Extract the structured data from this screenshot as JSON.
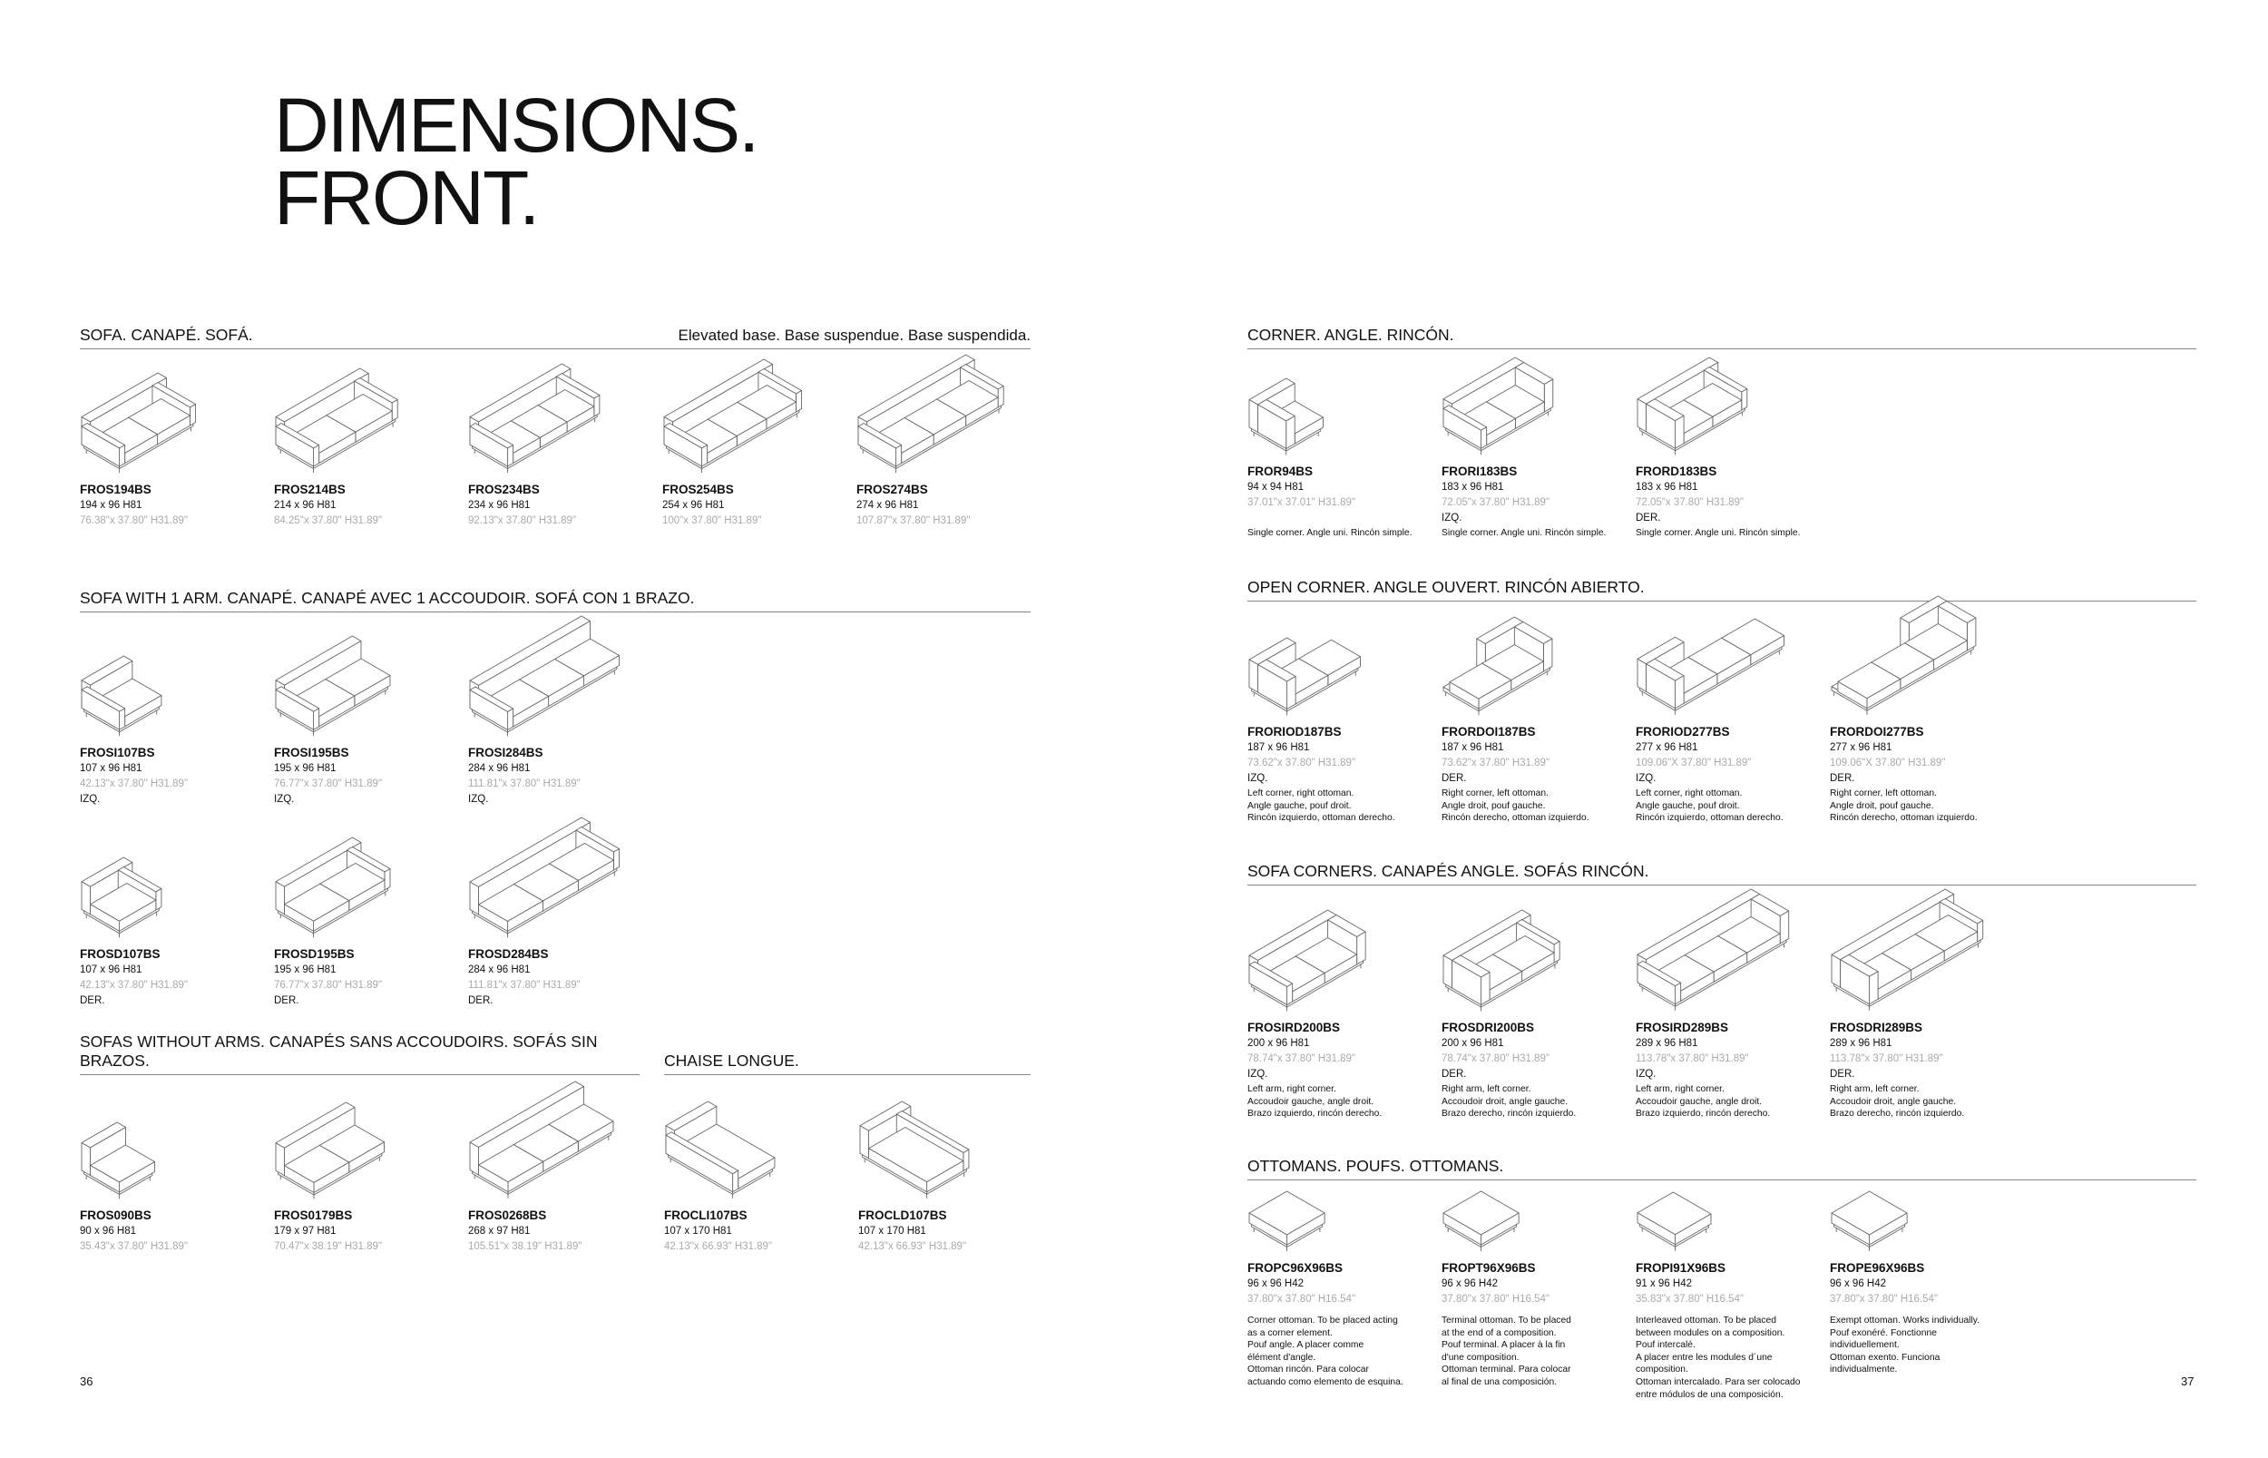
{
  "title": {
    "line1": "DIMENSIONS.",
    "line2": "FRONT."
  },
  "page_numbers": {
    "left": "36",
    "right": "37"
  },
  "sections": {
    "sofa": {
      "title": "SOFA. CANAPÉ. SOFÁ.",
      "note": "Elevated base. Base suspendue. Base suspendida.",
      "items": [
        {
          "code": "FROS194BS",
          "cm": "194 x 96  H81",
          "in": "76.38\"x 37.80\"  H31.89\"",
          "drawing": "sofa-2-arms"
        },
        {
          "code": "FROS214BS",
          "cm": "214 x 96  H81",
          "in": "84.25\"x 37.80\"  H31.89\"",
          "drawing": "sofa-2-arms"
        },
        {
          "code": "FROS234BS",
          "cm": "234 x 96  H81",
          "in": "92.13\"x 37.80\"  H31.89\"",
          "drawing": "sofa-2-arms"
        },
        {
          "code": "FROS254BS",
          "cm": "254 x 96  H81",
          "in": "100\"x 37.80\"  H31.89\"",
          "drawing": "sofa-2-arms"
        },
        {
          "code": "FROS274BS",
          "cm": "274 x 96  H81",
          "in": "107.87\"x 37.80\"  H31.89\"",
          "drawing": "sofa-2-arms"
        }
      ]
    },
    "one_arm": {
      "title": "SOFA WITH 1 ARM. CANAPÉ. CANAPÉ AVEC 1 ACCOUDOIR. SOFÁ CON 1 BRAZO.",
      "items": [
        {
          "code": "FROSI107BS",
          "cm": "107 x 96  H81",
          "in": "42.13\"x 37.80\"  H31.89\"",
          "side": "IZQ.",
          "drawing": "sofa-arm-left"
        },
        {
          "code": "FROSI195BS",
          "cm": "195 x 96  H81",
          "in": "76.77\"x 37.80\"  H31.89\"",
          "side": "IZQ.",
          "drawing": "sofa-arm-left"
        },
        {
          "code": "FROSI284BS",
          "cm": "284 x 96  H81",
          "in": "111.81\"x 37.80\"  H31.89\"",
          "side": "IZQ.",
          "drawing": "sofa-arm-left"
        },
        {
          "code": "FROSD107BS",
          "cm": "107 x 96  H81",
          "in": "42.13\"x 37.80\"  H31.89\"",
          "side": "DER.",
          "drawing": "sofa-arm-right"
        },
        {
          "code": "FROSD195BS",
          "cm": "195 x 96  H81",
          "in": "76.77\"x 37.80\"  H31.89\"",
          "side": "DER.",
          "drawing": "sofa-arm-right"
        },
        {
          "code": "FROSD284BS",
          "cm": "284 x 96  H81",
          "in": "111.81\"x 37.80\"  H31.89\"",
          "side": "DER.",
          "drawing": "sofa-arm-right"
        }
      ]
    },
    "no_arms": {
      "title": "SOFAS WITHOUT ARMS. CANAPÉS SANS ACCOUDOIRS. SOFÁS SIN BRAZOS.",
      "items": [
        {
          "code": "FROS090BS",
          "cm": "90 x 96  H81",
          "in": "35.43\"x 37.80\"  H31.89\"",
          "drawing": "sofa-no-arms"
        },
        {
          "code": "FROS0179BS",
          "cm": "179 x 97  H81",
          "in": "70.47\"x 38.19\"  H31.89\"",
          "drawing": "sofa-no-arms"
        },
        {
          "code": "FROS0268BS",
          "cm": "268 x 97  H81",
          "in": "105.51\"x 38.19\"  H31.89\"",
          "drawing": "sofa-no-arms"
        }
      ]
    },
    "chaise": {
      "title": "CHAISE LONGUE.",
      "items": [
        {
          "code": "FROCLI107BS",
          "cm": "107 x 170  H81",
          "in": "42.13\"x 66.93\"  H31.89\"",
          "drawing": "chaise-left"
        },
        {
          "code": "FROCLD107BS",
          "cm": "107 x 170  H81",
          "in": "42.13\"x 66.93\"  H31.89\"",
          "drawing": "chaise-right"
        }
      ]
    },
    "corner": {
      "title": "CORNER. ANGLE. RINCÓN.",
      "items": [
        {
          "code": "FROR94BS",
          "cm": "94 x 94  H81",
          "in": "37.01\"x 37.01\"  H31.89\"",
          "side": "",
          "desc": "Single corner. Angle uni. Rincón simple.",
          "drawing": "corner"
        },
        {
          "code": "FRORI183BS",
          "cm": "183 x 96  H81",
          "in": "72.05\"x 37.80\"  H31.89\"",
          "side": "IZQ.",
          "desc": "Single corner. Angle uni. Rincón simple.",
          "drawing": "corner-left"
        },
        {
          "code": "FRORD183BS",
          "cm": "183 x 96  H81",
          "in": "72.05\"x 37.80\"  H31.89\"",
          "side": "DER.",
          "desc": "Single corner. Angle uni. Rincón simple.",
          "drawing": "corner-right"
        }
      ]
    },
    "open_corner": {
      "title": "OPEN CORNER. ANGLE OUVERT. RINCÓN ABIERTO.",
      "items": [
        {
          "code": "FRORIOD187BS",
          "cm": "187 x 96  H81",
          "in": "73.62\"x 37.80\"  H31.89\"",
          "side": "IZQ.",
          "desc": "Left corner, right ottoman.\nAngle gauche, pouf droit.\nRincón izquierdo, ottoman derecho.",
          "drawing": "open-corner-left"
        },
        {
          "code": "FRORDOI187BS",
          "cm": "187 x 96  H81",
          "in": "73.62\"x 37.80\"  H31.89\"",
          "side": "DER.",
          "desc": "Right corner, left ottoman.\nAngle droit, pouf gauche.\nRincón derecho, ottoman izquierdo.",
          "drawing": "open-corner-right"
        },
        {
          "code": "FRORIOD277BS",
          "cm": "277 x 96  H81",
          "in": "109.06\"X 37.80\"  H31.89\"",
          "side": "IZQ.",
          "desc": "Left corner, right ottoman.\nAngle gauche, pouf droit.\nRincón izquierdo, ottoman derecho.",
          "drawing": "open-corner-left"
        },
        {
          "code": "FRORDOI277BS",
          "cm": "277 x 96  H81",
          "in": "109.06\"X 37.80\"  H31.89\"",
          "side": "DER.",
          "desc": "Right corner, left ottoman.\nAngle droit, pouf gauche.\nRincón derecho, ottoman izquierdo.",
          "drawing": "open-corner-right"
        }
      ]
    },
    "sofa_corners": {
      "title": "SOFA CORNERS. CANAPÉS ANGLE. SOFÁS RINCÓN.",
      "items": [
        {
          "code": "FROSIRD200BS",
          "cm": "200 x 96  H81",
          "in": "78.74\"x 37.80\"  H31.89\"",
          "side": "IZQ.",
          "desc": "Left arm, right corner.\nAccoudoir gauche, angle droit.\nBrazo izquierdo, rincón derecho.",
          "drawing": "sofa-corner-left"
        },
        {
          "code": "FROSDRI200BS",
          "cm": "200 x 96  H81",
          "in": "78.74\"x 37.80\"  H31.89\"",
          "side": "DER.",
          "desc": "Right arm, left corner.\nAccoudoir droit, angle gauche.\nBrazo derecho, rincón izquierdo.",
          "drawing": "sofa-corner-right"
        },
        {
          "code": "FROSIRD289BS",
          "cm": "289 x 96  H81",
          "in": "113.78\"x 37.80\"  H31.89\"",
          "side": "IZQ.",
          "desc": "Left arm, right corner.\nAccoudoir gauche, angle droit.\nBrazo izquierdo, rincón derecho.",
          "drawing": "sofa-corner-left"
        },
        {
          "code": "FROSDRI289BS",
          "cm": "289 x 96  H81",
          "in": "113.78\"x 37.80\"  H31.89\"",
          "side": "DER.",
          "desc": "Right arm, left corner.\nAccoudoir droit, angle gauche.\nBrazo derecho, rincón izquierdo.",
          "drawing": "sofa-corner-right"
        }
      ]
    },
    "ottomans": {
      "title": "OTTOMANS. POUFS. OTTOMANS.",
      "items": [
        {
          "code": "FROPC96X96BS",
          "cm": "96 x 96  H42",
          "in": "37.80\"x 37.80\"  H16.54\"",
          "desc": "Corner ottoman. To be placed acting\nas a corner element.\nPouf angle. A placer comme\nélément d'angle.\nOttoman rincón. Para colocar\nactuando como elemento de esquina.",
          "drawing": "ottoman"
        },
        {
          "code": "FROPT96X96BS",
          "cm": "96 x 96  H42",
          "in": "37.80\"x 37.80\"  H16.54\"",
          "desc": "Terminal ottoman. To be placed\nat the end of a composition.\nPouf terminal. A placer à la fin\nd'une composition.\nOttoman terminal. Para colocar\nal final de una composición.",
          "drawing": "ottoman"
        },
        {
          "code": "FROPI91X96BS",
          "cm": "91 x 96  H42",
          "in": "35.83\"x 37.80\"  H16.54\"",
          "desc": "Interleaved ottoman. To be placed\nbetween modules on a composition.\nPouf intercalé.\nA placer entre les modules d´une\ncomposition.\nOttoman intercalado. Para ser colocado\nentre módulos de una composición.",
          "drawing": "ottoman"
        },
        {
          "code": "FROPE96X96BS",
          "cm": "96 x 96  H42",
          "in": "37.80\"x 37.80\"  H16.54\"",
          "desc": "Exempt ottoman. Works individually.\nPouf exonéré. Fonctionne\nindividuellement.\nOttoman exento. Funciona\nindividualmente.",
          "drawing": "ottoman"
        }
      ]
    }
  }
}
